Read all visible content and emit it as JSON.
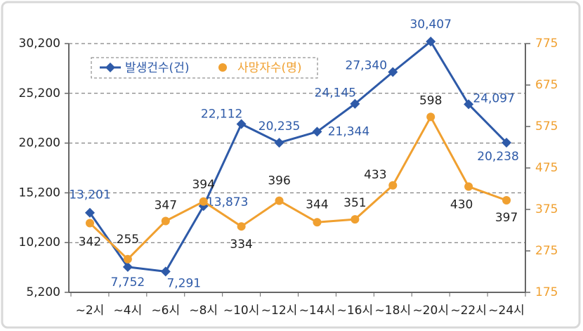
{
  "chart_data": {
    "type": "line",
    "categories": [
      "~2시",
      "~4시",
      "~6시",
      "~8시",
      "~10시",
      "~12시",
      "~14시",
      "~16시",
      "~18시",
      "~20시",
      "~22시",
      "~24시"
    ],
    "series": [
      {
        "name": "발생건수(건)",
        "color": "#2e5aa8",
        "marker": "diamond",
        "values": [
          13201,
          7752,
          7291,
          13873,
          22112,
          20235,
          21344,
          24145,
          27340,
          30407,
          24097,
          20238
        ],
        "value_labels": [
          "13,201",
          "7,752",
          "7,291",
          "13,873",
          "22,112",
          "20,235",
          "21,344",
          "24,145",
          "27,340",
          "30,407",
          "24,097",
          "20,238"
        ]
      },
      {
        "name": "사망자수(명)",
        "color": "#f0a030",
        "marker": "circle",
        "axis": "y2",
        "values": [
          342,
          255,
          347,
          394,
          334,
          396,
          344,
          351,
          433,
          598,
          430,
          397
        ]
      }
    ],
    "ylim": [
      5200,
      30200
    ],
    "yticks": [
      {
        "value": 5200,
        "label": "5,200"
      },
      {
        "value": 10200,
        "label": "10,200"
      },
      {
        "value": 15200,
        "label": "15,200"
      },
      {
        "value": 20200,
        "label": "20,200"
      },
      {
        "value": 25200,
        "label": "25,200"
      },
      {
        "value": 30200,
        "label": "30,200"
      }
    ],
    "y2lim": [
      175,
      775
    ],
    "y2ticks": [
      175,
      275,
      375,
      475,
      575,
      675,
      775
    ],
    "grid": true,
    "legend": "top-left"
  }
}
